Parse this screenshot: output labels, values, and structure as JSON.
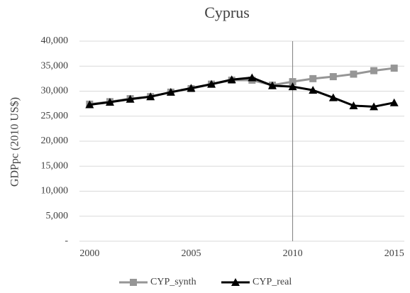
{
  "chart_data": {
    "type": "line",
    "title": "Cyprus",
    "y_label": "GDPpc (2010 US$)",
    "x": [
      2000,
      2001,
      2002,
      2003,
      2004,
      2005,
      2006,
      2007,
      2008,
      2009,
      2010,
      2011,
      2012,
      2013,
      2014,
      2015
    ],
    "series": [
      {
        "name": "CYP_synth",
        "color": "#969696",
        "marker": "square",
        "values": [
          27400,
          27900,
          28500,
          28900,
          29800,
          30500,
          31400,
          32200,
          32200,
          31200,
          31900,
          32500,
          32900,
          33400,
          34100,
          34600
        ]
      },
      {
        "name": "CYP_real",
        "color": "#000000",
        "marker": "triangle",
        "values": [
          27300,
          27800,
          28400,
          28900,
          29800,
          30600,
          31400,
          32300,
          32700,
          31100,
          30900,
          30200,
          28700,
          27100,
          26900,
          27700
        ]
      }
    ],
    "xlim": [
      1999.5,
      2015.5
    ],
    "xticks": [
      2000,
      2005,
      2010,
      2015
    ],
    "ylim": [
      0,
      40000
    ],
    "yticks": [
      {
        "value": 0,
        "label": "-"
      },
      {
        "value": 5000,
        "label": "5,000"
      },
      {
        "value": 10000,
        "label": "10,000"
      },
      {
        "value": 15000,
        "label": "15,000"
      },
      {
        "value": 20000,
        "label": "20,000"
      },
      {
        "value": 25000,
        "label": "25,000"
      },
      {
        "value": 30000,
        "label": "30,000"
      },
      {
        "value": 35000,
        "label": "35,000"
      },
      {
        "value": 40000,
        "label": "40,000"
      }
    ],
    "grid": true,
    "vline": 2010,
    "legend": "bottom"
  }
}
